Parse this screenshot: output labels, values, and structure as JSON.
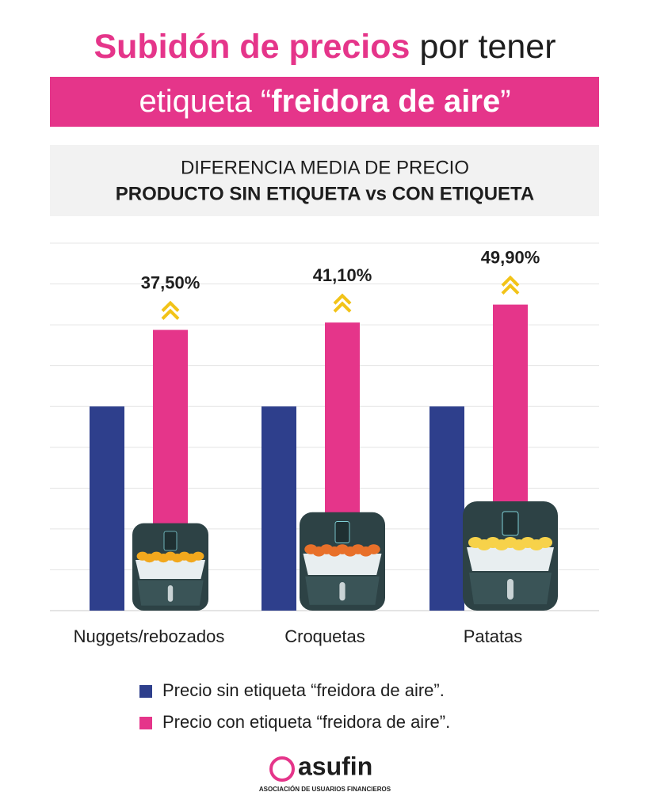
{
  "chart_data": {
    "type": "bar",
    "title_parts": [
      "Subidón de precios",
      "por tener",
      "etiqueta “",
      "freidora de aire",
      "”"
    ],
    "subtitle": [
      "DIFERENCIA MEDIA DE PRECIO",
      "PRODUCTO SIN ETIQUETA vs CON ETIQUETA"
    ],
    "categories": [
      "Nuggets/rebozados",
      "Croquetas",
      "Patatas"
    ],
    "series": [
      {
        "name": "Precio sin etiqueta “freidora de aire”.",
        "color": "#2e3f8c",
        "values": [
          100,
          100,
          100
        ]
      },
      {
        "name": "Precio con etiqueta “freidora de aire”.",
        "color": "#e5358a",
        "values": [
          137.5,
          141.1,
          149.9
        ]
      }
    ],
    "increase": {
      "values": [
        37.5,
        41.1,
        49.9
      ],
      "value_labels": [
        "37,50%",
        "41,10%",
        "49,90%"
      ],
      "color": "#f2c318"
    },
    "ylim": [
      0,
      180
    ],
    "yticks": [
      0,
      20,
      40,
      60,
      80,
      100,
      120,
      140,
      160,
      180
    ],
    "grid": true,
    "logo": {
      "name": "asufin",
      "tagline": "ASOCIACIÓN DE USUARIOS FINANCIEROS"
    }
  }
}
